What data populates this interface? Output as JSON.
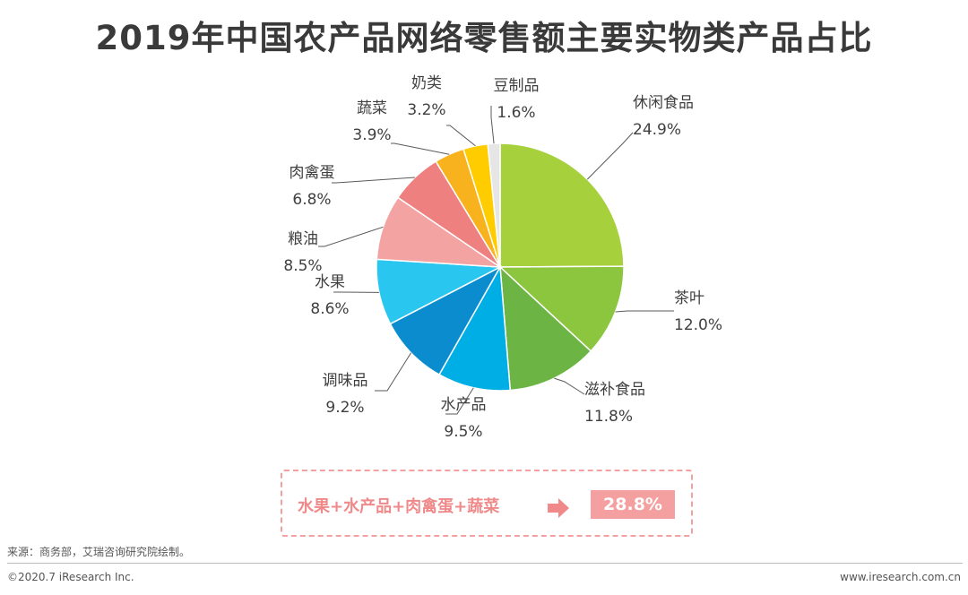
{
  "title": "2019年中国农产品网络零售额主要实物类产品占比",
  "chart_data": {
    "type": "pie",
    "title": "2019年中国农产品网络零售额主要实物类产品占比",
    "unit": "%",
    "slices": [
      {
        "label": "休闲食品",
        "value": 24.9,
        "display": "24.9%",
        "color": "#a6d13c"
      },
      {
        "label": "茶叶",
        "value": 12.0,
        "display": "12.0%",
        "color": "#8cc63f"
      },
      {
        "label": "滋补食品",
        "value": 11.8,
        "display": "11.8%",
        "color": "#6cb545"
      },
      {
        "label": "水产品",
        "value": 9.5,
        "display": "9.5%",
        "color": "#00aee6"
      },
      {
        "label": "调味品",
        "value": 9.2,
        "display": "9.2%",
        "color": "#0a8ccf"
      },
      {
        "label": "水果",
        "value": 8.6,
        "display": "8.6%",
        "color": "#29c6f0"
      },
      {
        "label": "粮油",
        "value": 8.5,
        "display": "8.5%",
        "color": "#f4a3a3"
      },
      {
        "label": "肉禽蛋",
        "value": 6.8,
        "display": "6.8%",
        "color": "#ef8080"
      },
      {
        "label": "蔬菜",
        "value": 3.9,
        "display": "3.9%",
        "color": "#f7b21d"
      },
      {
        "label": "奶类",
        "value": 3.2,
        "display": "3.2%",
        "color": "#ffcc00"
      },
      {
        "label": "豆制品",
        "value": 1.6,
        "display": "1.6%",
        "color": "#e6e6e6"
      }
    ]
  },
  "summary": {
    "formula": "水果+水产品+肉禽蛋+蔬菜",
    "arrow_icon": "right-arrow-icon",
    "value": "28.8%"
  },
  "footer": {
    "source": "来源：商务部，艾瑞咨询研究院绘制。",
    "copyright": "©2020.7 iResearch Inc.",
    "website": "www.iresearch.com.cn"
  }
}
